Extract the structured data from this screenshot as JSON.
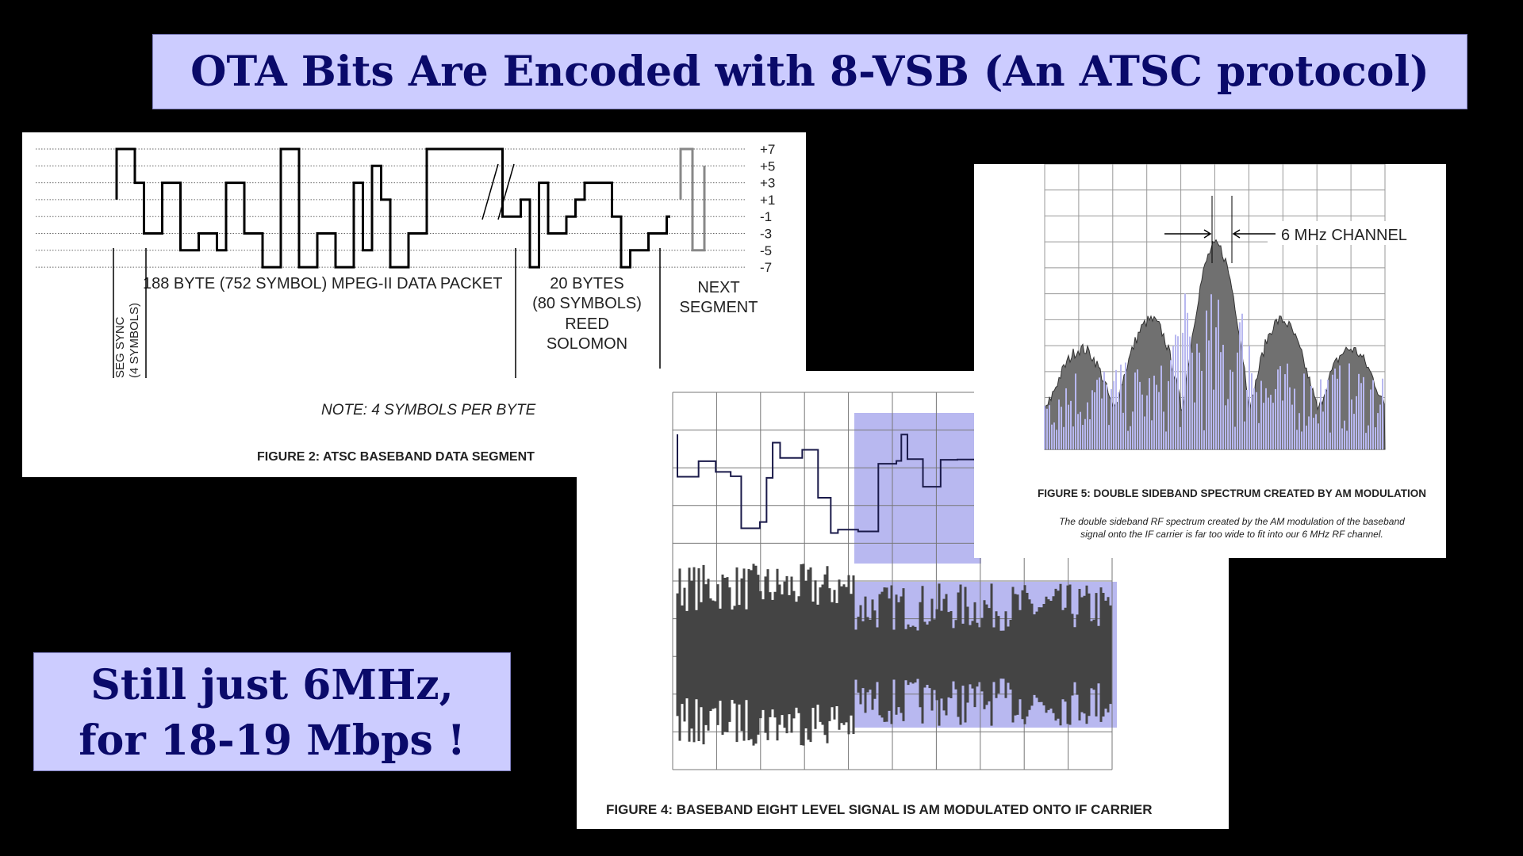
{
  "title": "OTA Bits Are Encoded with 8-VSB (An ATSC protocol)",
  "callout": {
    "lines": [
      "Still just 6MHz,",
      "for 18-19 Mbps !"
    ]
  },
  "figure2": {
    "levels": [
      "+7",
      "+5",
      "+3",
      "+1",
      "-1",
      "-3",
      "-5",
      "-7"
    ],
    "packet_label": "188 BYTE (752 SYMBOL) MPEG-II DATA PACKET",
    "reed_solomon": [
      "20 BYTES",
      "(80 SYMBOLS)",
      "REED",
      "SOLOMON"
    ],
    "next_segment": [
      "NEXT",
      "SEGMENT"
    ],
    "seg_sync": [
      "SEG SYNC",
      "(4 SYMBOLS)"
    ],
    "note": "NOTE:  4 SYMBOLS PER BYTE",
    "caption": "FIGURE 2: ATSC BASEBAND DATA SEGMENT"
  },
  "figure4": {
    "caption": "FIGURE 4: BASEBAND EIGHT LEVEL SIGNAL IS AM MODULATED ONTO IF CARRIER"
  },
  "figure5": {
    "channel_label": "6 MHz CHANNEL",
    "caption": "FIGURE 5: DOUBLE SIDEBAND SPECTRUM CREATED BY AM MODULATION",
    "description": [
      "The double sideband RF spectrum created by the AM modulation of the baseband",
      "signal onto the IF carrier is far too wide to fit into our 6 MHz RF channel."
    ]
  }
}
